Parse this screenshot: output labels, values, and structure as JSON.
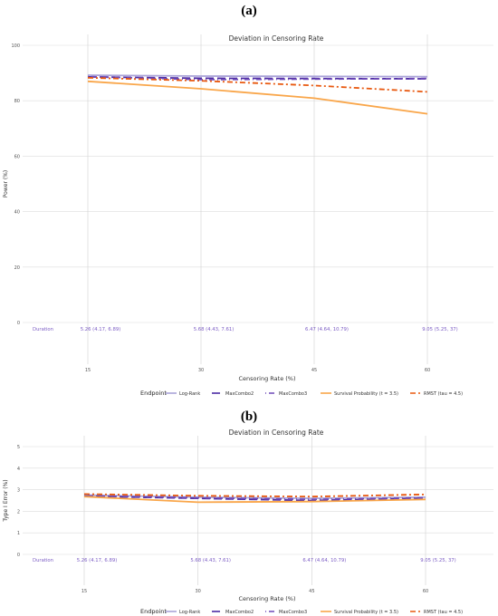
{
  "chart_data": [
    {
      "panel_label": "(a)",
      "type": "line",
      "title": "Deviation in Censoring Rate",
      "xlabel": "Censoring Rate (%)",
      "ylabel": "Power (%)",
      "x": [
        15,
        30,
        45,
        60
      ],
      "x_ticks": [
        "15",
        "30",
        "45",
        "60"
      ],
      "ylim": [
        0,
        100
      ],
      "y_ticks": [
        0,
        20,
        40,
        60,
        80,
        100
      ],
      "grid": true,
      "duration_label": "Duration",
      "durations": [
        "5.26 (4.17, 6.89)",
        "5.68 (4.43, 7.61)",
        "6.47 (4.64, 10.79)",
        "9.05 (5.25, 37)"
      ],
      "legend_title": "Endpoint",
      "legend_position": "bottom",
      "series": [
        {
          "name": "Log-Rank",
          "color": "#aaa3d8",
          "dash": "solid",
          "values": [
            89.2,
            88.9,
            88.8,
            88.7
          ]
        },
        {
          "name": "MaxCombo2",
          "color": "#4b2aa4",
          "dash": "longdash",
          "values": [
            88.6,
            88.1,
            88.0,
            87.9
          ]
        },
        {
          "name": "MaxCombo3",
          "color": "#6e49b8",
          "dash": "dotdash",
          "values": [
            88.7,
            87.6,
            87.8,
            88.0
          ]
        },
        {
          "name": "Survival Probability (t = 3.5)",
          "color": "#f9a64a",
          "dash": "solid",
          "values": [
            87.0,
            84.3,
            80.9,
            75.3
          ]
        },
        {
          "name": "RMST (tau = 4.5)",
          "color": "#e8580f",
          "dash": "twodash",
          "values": [
            88.3,
            87.2,
            85.5,
            83.2
          ]
        }
      ]
    },
    {
      "panel_label": "(b)",
      "type": "line",
      "title": "Deviation in Censoring Rate",
      "xlabel": "Censoring Rate (%)",
      "ylabel": "Type I Error (%)",
      "x": [
        15,
        30,
        45,
        60
      ],
      "x_ticks": [
        "15",
        "30",
        "45",
        "60"
      ],
      "ylim": [
        0,
        5
      ],
      "y_ticks": [
        0,
        1,
        2,
        3,
        4,
        5
      ],
      "grid": true,
      "duration_label": "Duration",
      "durations": [
        "5.26 (4.17, 6.89)",
        "5.68 (4.43, 7.61)",
        "6.47 (4.64, 10.79)",
        "9.05 (5.25, 37)"
      ],
      "legend_title": "Endpoint",
      "legend_position": "bottom",
      "series": [
        {
          "name": "Log-Rank",
          "color": "#aaa3d8",
          "dash": "solid",
          "values": [
            2.75,
            2.65,
            2.6,
            2.65
          ]
        },
        {
          "name": "MaxCombo2",
          "color": "#4b2aa4",
          "dash": "longdash",
          "values": [
            2.7,
            2.6,
            2.5,
            2.6
          ]
        },
        {
          "name": "MaxCombo3",
          "color": "#6e49b8",
          "dash": "dotdash",
          "values": [
            2.72,
            2.62,
            2.55,
            2.62
          ]
        },
        {
          "name": "Survival Probability (t = 3.5)",
          "color": "#f9a64a",
          "dash": "solid",
          "values": [
            2.68,
            2.42,
            2.45,
            2.55
          ]
        },
        {
          "name": "RMST (tau = 4.5)",
          "color": "#e8580f",
          "dash": "twodash",
          "values": [
            2.8,
            2.72,
            2.68,
            2.78
          ]
        }
      ]
    }
  ]
}
